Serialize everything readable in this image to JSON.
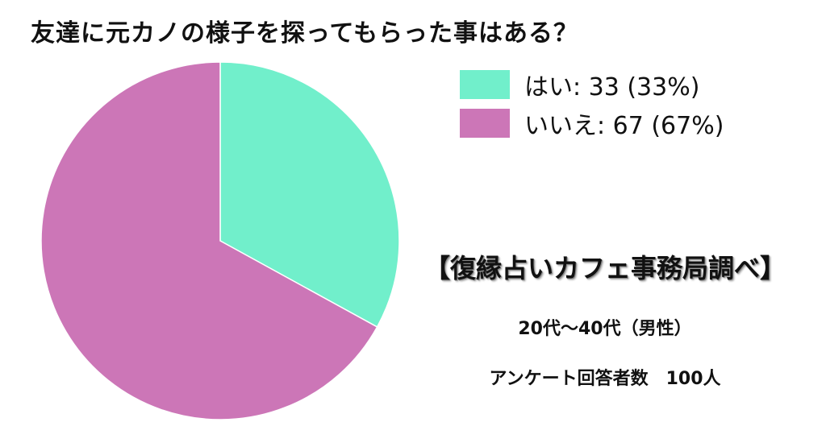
{
  "chart_data": {
    "type": "pie",
    "title": "友達に元カノの様子を探ってもらった事はある？",
    "series": [
      {
        "name": "はい",
        "value": 33,
        "percent": 33,
        "color": "#71EFCB"
      },
      {
        "name": "いいえ",
        "value": 67,
        "percent": 67,
        "color": "#CC76B7"
      }
    ],
    "legend_placement": "top-right"
  },
  "legend": {
    "items": [
      {
        "label": "はい: 33 (33%)",
        "color": "#71EFCB"
      },
      {
        "label": "いいえ: 67 (67%)",
        "color": "#CC76B7"
      }
    ]
  },
  "info": {
    "source": "【復縁占いカフェ事務局調べ】",
    "demographic": "20代〜40代（男性）",
    "respondents": "アンケート回答者数　100人"
  }
}
